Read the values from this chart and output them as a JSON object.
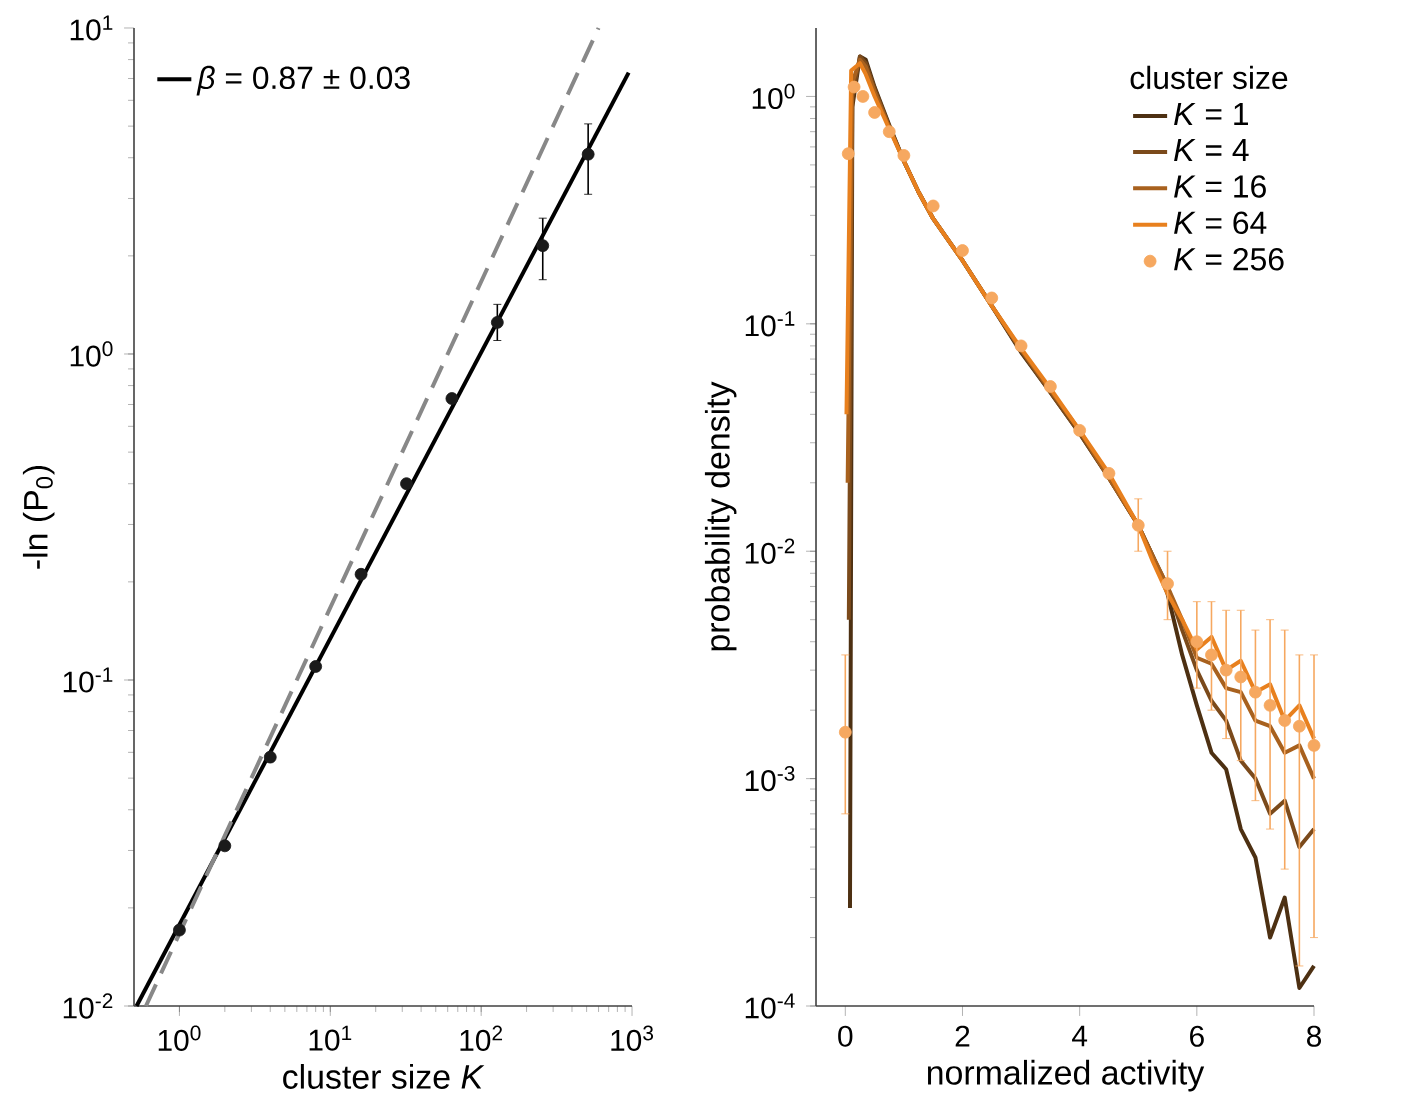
{
  "chart_data": [
    {
      "type": "scatter",
      "xlabel": "cluster size *K*",
      "ylabel": "-ln (P$_{0}$)",
      "log": "xy",
      "legend": "top left",
      "xlim": [
        0.5,
        1000
      ],
      "ylim": [
        0.01,
        10
      ],
      "xticks": [
        {
          "value": 1,
          "label": "10$^{0}$"
        },
        {
          "value": 10,
          "label": "10$^{1}$"
        },
        {
          "value": 100,
          "label": "10$^{2}$"
        },
        {
          "value": 1000,
          "label": "10$^{3}$"
        }
      ],
      "yticks": [
        {
          "value": 0.01,
          "label": "10$^{-2}$"
        },
        {
          "value": 0.1,
          "label": "10$^{-1}$"
        },
        {
          "value": 1,
          "label": "10$^{0}$"
        },
        {
          "value": 10,
          "label": "10$^{1}$"
        }
      ],
      "series": [
        {
          "marker": "circle",
          "color": "#1a1a1a",
          "x": [
            1,
            2,
            4,
            8,
            16,
            32,
            64,
            128,
            256,
            512
          ],
          "values": [
            0.0171,
            0.031,
            0.058,
            0.11,
            0.211,
            0.4,
            0.73,
            1.25,
            2.15,
            4.1
          ],
          "errors": [
            null,
            null,
            null,
            null,
            null,
            null,
            null,
            [
              1.1,
              1.42
            ],
            [
              1.69,
              2.61
            ],
            [
              3.09,
              5.08
            ]
          ]
        },
        {
          "type": "line",
          "name": "*β* = 0.87 ± 0.03",
          "color": "#000000",
          "line_style": "solid",
          "x": [
            0.52,
            950
          ],
          "values": [
            0.01,
            7.3
          ]
        },
        {
          "type": "line",
          "color": "#888888",
          "line_style": "dashed",
          "x": [
            0.6,
            600
          ],
          "values": [
            0.01,
            10
          ]
        }
      ]
    },
    {
      "type": "line",
      "xlabel": "normalized activity",
      "ylabel": "probability density",
      "log": "y",
      "legend": "top right",
      "legend_title": "cluster size",
      "xlim": [
        -0.5,
        8
      ],
      "ylim": [
        0.0001,
        2
      ],
      "xticks": [
        0,
        2,
        4,
        6,
        8
      ],
      "yticks": [
        {
          "value": 0.0001,
          "label": "10$^{-4}$"
        },
        {
          "value": 0.001,
          "label": "10$^{-3}$"
        },
        {
          "value": 0.01,
          "label": "10$^{-2}$"
        },
        {
          "value": 0.1,
          "label": "10$^{-1}$"
        },
        {
          "value": 1,
          "label": "10$^{0}$"
        }
      ],
      "series": [
        {
          "type": "scatter",
          "name": "*K* = 256",
          "marker": "circle",
          "color": "#f6a860",
          "x": [
            0,
            0.05,
            0.15,
            0.3,
            0.5,
            0.75,
            1,
            1.5,
            2,
            2.5,
            3,
            3.5,
            4,
            4.5,
            5,
            5.5,
            6,
            6.25,
            6.5,
            6.75,
            7,
            7.25,
            7.5,
            7.75,
            8
          ],
          "values": [
            0.0016,
            0.56,
            1.1,
            1.0,
            0.85,
            0.7,
            0.55,
            0.33,
            0.21,
            0.13,
            0.08,
            0.053,
            0.034,
            0.022,
            0.013,
            0.0072,
            0.004,
            0.0035,
            0.003,
            0.0028,
            0.0024,
            0.0021,
            0.0018,
            0.0017,
            0.0014
          ],
          "errors": [
            [
              0.0007,
              0.0035
            ],
            null,
            null,
            null,
            null,
            null,
            null,
            null,
            null,
            null,
            null,
            null,
            null,
            null,
            [
              0.01,
              0.017
            ],
            [
              0.005,
              0.01
            ],
            [
              0.0025,
              0.006
            ],
            [
              0.002,
              0.006
            ],
            [
              0.0015,
              0.0055
            ],
            [
              0.0012,
              0.0055
            ],
            [
              0.0008,
              0.0045
            ],
            [
              0.0006,
              0.005
            ],
            [
              0.0004,
              0.0045
            ],
            [
              0.00015,
              0.0035
            ],
            [
              0.0002,
              0.0035
            ]
          ]
        },
        {
          "name": "*K* = 1",
          "color": "#4d3012",
          "x": [
            0.08,
            0.12,
            0.25,
            0.35,
            0.5,
            0.75,
            1,
            1.25,
            1.5,
            2,
            2.5,
            3,
            3.5,
            4,
            4.5,
            5,
            5.25,
            5.5,
            5.75,
            6,
            6.25,
            6.5,
            6.75,
            7,
            7.25,
            7.5,
            7.75,
            8
          ],
          "values": [
            0.00027,
            0.9,
            1.5,
            1.45,
            1.1,
            0.75,
            0.52,
            0.38,
            0.29,
            0.19,
            0.12,
            0.075,
            0.05,
            0.033,
            0.021,
            0.013,
            0.0095,
            0.0065,
            0.0035,
            0.0021,
            0.0013,
            0.0011,
            0.0006,
            0.00045,
            0.0002,
            0.0003,
            0.00012,
            0.00015
          ]
        },
        {
          "name": "*K* = 4",
          "color": "#7b4a1b",
          "x": [
            0.06,
            0.12,
            0.25,
            0.35,
            0.5,
            0.75,
            1,
            1.25,
            1.5,
            2,
            2.5,
            3,
            3.5,
            4,
            4.5,
            5,
            5.25,
            5.5,
            5.75,
            6,
            6.25,
            6.5,
            6.75,
            7,
            7.25,
            7.5,
            7.75,
            8
          ],
          "values": [
            0.005,
            1.0,
            1.5,
            1.4,
            1.08,
            0.74,
            0.52,
            0.38,
            0.29,
            0.19,
            0.12,
            0.076,
            0.05,
            0.033,
            0.021,
            0.013,
            0.0095,
            0.007,
            0.0045,
            0.003,
            0.0022,
            0.0018,
            0.0012,
            0.001,
            0.0007,
            0.0008,
            0.0005,
            0.0006
          ]
        },
        {
          "name": "*K* = 16",
          "color": "#a8611e",
          "x": [
            0.04,
            0.12,
            0.25,
            0.35,
            0.5,
            0.75,
            1,
            1.25,
            1.5,
            2,
            2.5,
            3,
            3.5,
            4,
            4.5,
            5,
            5.25,
            5.5,
            5.75,
            6,
            6.25,
            6.5,
            6.75,
            7,
            7.25,
            7.5,
            7.75,
            8
          ],
          "values": [
            0.02,
            1.15,
            1.45,
            1.35,
            1.05,
            0.73,
            0.52,
            0.38,
            0.29,
            0.19,
            0.12,
            0.077,
            0.051,
            0.034,
            0.021,
            0.013,
            0.0095,
            0.007,
            0.005,
            0.0034,
            0.0032,
            0.0025,
            0.0024,
            0.0018,
            0.0017,
            0.0013,
            0.0014,
            0.001
          ]
        },
        {
          "name": "*K* = 64",
          "color": "#e8801e",
          "x": [
            0.02,
            0.1,
            0.25,
            0.35,
            0.5,
            0.75,
            1,
            1.25,
            1.5,
            2,
            2.5,
            3,
            3.5,
            4,
            4.5,
            5,
            5.25,
            5.5,
            5.75,
            6,
            6.25,
            6.5,
            6.75,
            7,
            7.25,
            7.5,
            7.75,
            8
          ],
          "values": [
            0.04,
            1.3,
            1.4,
            1.25,
            1.0,
            0.72,
            0.52,
            0.38,
            0.29,
            0.19,
            0.12,
            0.078,
            0.052,
            0.034,
            0.022,
            0.013,
            0.009,
            0.0065,
            0.005,
            0.0037,
            0.0042,
            0.003,
            0.0033,
            0.0024,
            0.0026,
            0.0018,
            0.0021,
            0.0015
          ]
        }
      ]
    }
  ]
}
